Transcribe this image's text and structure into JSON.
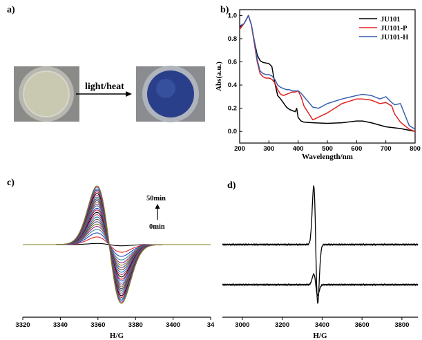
{
  "panels": {
    "a": {
      "label": "a)",
      "arrow_text": "light/heat",
      "photo_left": {
        "fill": "#c9c8b0",
        "rim": "#b8b7b0",
        "bg": "#8a8a88"
      },
      "photo_right": {
        "fill": "#2a3f8a",
        "rim": "#b0b4bc",
        "bg": "#8a8c90"
      }
    },
    "b": {
      "label": "b)"
    },
    "c": {
      "label": "c)",
      "annot_top": "50min",
      "annot_bottom": "0min"
    },
    "d": {
      "label": "d)"
    }
  },
  "chart_data": [
    {
      "id": "b",
      "type": "line",
      "xlabel": "Wavelength/nm",
      "ylabel": "Abs(a.u.)",
      "xlim": [
        200,
        800
      ],
      "ylim": [
        -0.1,
        1.05
      ],
      "xticks": [
        "200",
        "300",
        "400",
        "500",
        "600",
        "700",
        "800"
      ],
      "yticks": [
        "0.0",
        "0.2",
        "0.4",
        "0.6",
        "0.8",
        "1.0"
      ],
      "legend_position": "top-right",
      "series": [
        {
          "name": "JU101",
          "color": "#000000",
          "x": [
            200,
            215,
            230,
            240,
            250,
            260,
            270,
            280,
            290,
            300,
            310,
            320,
            330,
            340,
            350,
            360,
            370,
            380,
            390,
            395,
            400,
            410,
            420,
            450,
            500,
            550,
            600,
            620,
            650,
            700,
            750,
            780,
            800
          ],
          "y": [
            0.9,
            0.93,
            1.0,
            0.92,
            0.78,
            0.66,
            0.61,
            0.595,
            0.59,
            0.585,
            0.56,
            0.42,
            0.31,
            0.28,
            0.245,
            0.21,
            0.19,
            0.18,
            0.17,
            0.2,
            0.12,
            0.09,
            0.08,
            0.075,
            0.07,
            0.075,
            0.09,
            0.09,
            0.075,
            0.04,
            0.025,
            0.01,
            0.0
          ]
        },
        {
          "name": "JU101-P",
          "color": "#e02020",
          "x": [
            200,
            215,
            230,
            240,
            250,
            260,
            270,
            280,
            290,
            300,
            310,
            320,
            330,
            340,
            350,
            360,
            370,
            380,
            390,
            400,
            410,
            420,
            450,
            500,
            550,
            600,
            620,
            650,
            680,
            700,
            720,
            730,
            750,
            780,
            800
          ],
          "y": [
            0.88,
            0.93,
            1.0,
            0.92,
            0.76,
            0.6,
            0.5,
            0.47,
            0.46,
            0.46,
            0.45,
            0.42,
            0.36,
            0.32,
            0.31,
            0.32,
            0.33,
            0.34,
            0.34,
            0.35,
            0.3,
            0.22,
            0.1,
            0.16,
            0.24,
            0.28,
            0.28,
            0.27,
            0.24,
            0.25,
            0.22,
            0.15,
            0.08,
            0.02,
            0.0
          ]
        },
        {
          "name": "JU101-H",
          "color": "#3a5fb0",
          "x": [
            200,
            215,
            230,
            240,
            250,
            260,
            270,
            280,
            290,
            300,
            310,
            320,
            330,
            340,
            350,
            360,
            370,
            380,
            390,
            400,
            410,
            420,
            450,
            470,
            500,
            550,
            600,
            620,
            650,
            680,
            700,
            720,
            730,
            750,
            780,
            800
          ],
          "y": [
            0.91,
            0.93,
            1.0,
            0.92,
            0.78,
            0.62,
            0.52,
            0.5,
            0.49,
            0.49,
            0.48,
            0.45,
            0.4,
            0.38,
            0.37,
            0.36,
            0.36,
            0.35,
            0.35,
            0.35,
            0.33,
            0.3,
            0.21,
            0.2,
            0.24,
            0.28,
            0.31,
            0.32,
            0.31,
            0.28,
            0.3,
            0.25,
            0.23,
            0.24,
            0.05,
            0.02
          ]
        }
      ]
    },
    {
      "id": "c",
      "type": "line",
      "xlabel": "H/G",
      "ylabel": "",
      "xlim": [
        3320,
        3420
      ],
      "xticks": [
        "3320",
        "3340",
        "3360",
        "3380",
        "3400",
        "34"
      ],
      "center": 3366,
      "width": 6.5,
      "series_count": 26,
      "amplitudes": [
        0.02,
        0.13,
        0.2,
        0.26,
        0.31,
        0.35,
        0.39,
        0.43,
        0.47,
        0.51,
        0.55,
        0.59,
        0.62,
        0.66,
        0.69,
        0.72,
        0.75,
        0.78,
        0.81,
        0.84,
        0.87,
        0.9,
        0.93,
        0.95,
        0.98,
        1.0
      ],
      "color_cycle": [
        "#000000",
        "#e02020",
        "#2a3fc0",
        "#2a8f8f",
        "#a020a0",
        "#7f7f20",
        "#404080",
        "#804020",
        "#0080c0",
        "#c04080"
      ]
    },
    {
      "id": "d",
      "type": "line",
      "xlabel": "H/G",
      "ylabel": "",
      "xlim": [
        2900,
        3880
      ],
      "xticks": [
        "3000",
        "3200",
        "3400",
        "3600",
        "3800"
      ],
      "center": 3368,
      "width": 10,
      "series": [
        {
          "name": "",
          "baseline": 0.7,
          "amplitude": 1.0,
          "color": "#000000"
        },
        {
          "name": "",
          "baseline": 0.0,
          "amplitude": 0.18,
          "color": "#000000"
        }
      ]
    }
  ]
}
